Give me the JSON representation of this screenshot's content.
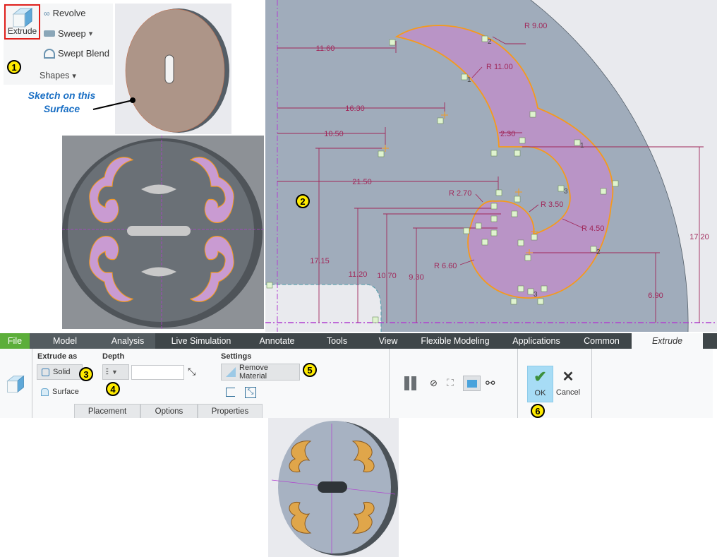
{
  "shapes_group": {
    "extrude_label": "Extrude",
    "revolve_label": "Revolve",
    "sweep_label": "Sweep",
    "swept_blend_label": "Swept Blend",
    "group_label": "Shapes",
    "dropdown_glyph": "▾"
  },
  "annotation": {
    "sketch_note_line1": "Sketch on this",
    "sketch_note_line2": "Surface"
  },
  "callouts": [
    "1",
    "2",
    "3",
    "4",
    "5",
    "6"
  ],
  "sketch": {
    "dimensions": {
      "d1160": "11.60",
      "d1630": "16.30",
      "d1050": "10.50",
      "d2150": "21.50",
      "r900": "R 9.00",
      "r1100": "R 11.00",
      "d230": "2.30",
      "r270": "R 2.70",
      "r350": "R 3.50",
      "r450": "R 4.50",
      "r660": "R 6.60",
      "d1715": "17.15",
      "d1120": "11.20",
      "d1070": "10.70",
      "d930": "9.30",
      "d690": "6.90",
      "d1720": "17.20"
    },
    "constraint_indices": {
      "c1": "1",
      "c2": "2",
      "c3": "3"
    },
    "colors": {
      "sketch_fill": "#b994c6",
      "sketch_edge": "#f59a1c",
      "dimension": "#a0285a",
      "part": "#a0acbb",
      "axis": "#b040d0"
    }
  },
  "tabs": [
    {
      "label": "File"
    },
    {
      "label": "Model"
    },
    {
      "label": "Analysis"
    },
    {
      "label": "Live Simulation"
    },
    {
      "label": "Annotate"
    },
    {
      "label": "Tools"
    },
    {
      "label": "View"
    },
    {
      "label": "Flexible Modeling"
    },
    {
      "label": "Applications"
    },
    {
      "label": "Common"
    },
    {
      "label": "Extrude"
    }
  ],
  "ribbon": {
    "extrude_as_label": "Extrude as",
    "solid_label": "Solid",
    "surface_label": "Surface",
    "depth_label": "Depth",
    "depth_value": "",
    "settings_label": "Settings",
    "remove_material_label": "Remove Material",
    "ok_label": "OK",
    "cancel_label": "Cancel",
    "subtabs": [
      "Placement",
      "Options",
      "Properties"
    ]
  }
}
